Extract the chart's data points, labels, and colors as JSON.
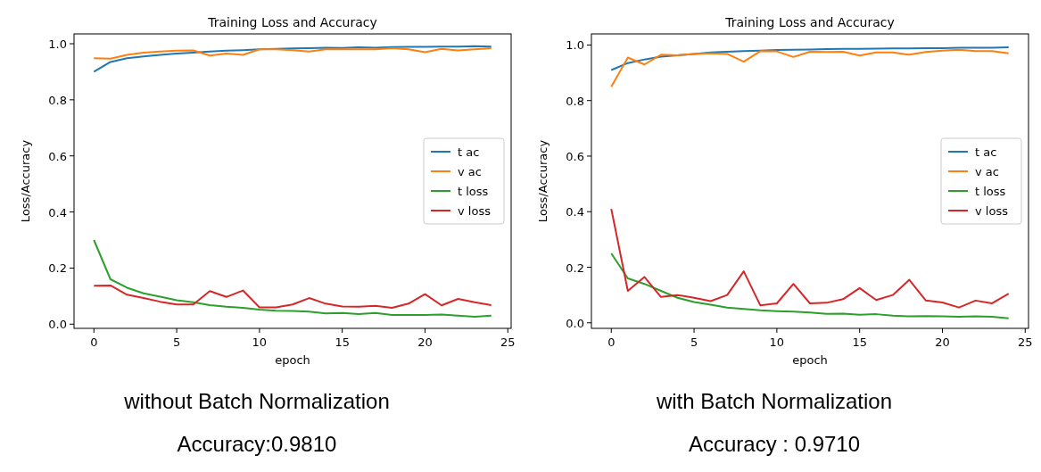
{
  "chart_data": [
    {
      "type": "line",
      "title": "Training Loss and Accuracy",
      "xlabel": "epoch",
      "ylabel": "Loss/Accuracy",
      "x": [
        0,
        1,
        2,
        3,
        4,
        5,
        6,
        7,
        8,
        9,
        10,
        11,
        12,
        13,
        14,
        15,
        16,
        17,
        18,
        19,
        20,
        21,
        22,
        23,
        24
      ],
      "xlim": [
        -1.2,
        25.2
      ],
      "xticks": [
        0,
        5,
        10,
        15,
        20,
        25
      ],
      "ylim": [
        -0.015,
        1.035
      ],
      "yticks": [
        {
          "value": 0,
          "label": "0.0"
        },
        {
          "value": 0.2,
          "label": "0.2"
        },
        {
          "value": 0.4,
          "label": "0.4"
        },
        {
          "value": 0.6,
          "label": "0.6"
        },
        {
          "value": 0.8,
          "label": "0.8"
        },
        {
          "value": 1,
          "label": "1.0"
        }
      ],
      "legend": "center right",
      "grid": false,
      "annotations": [
        "without Batch Normalization",
        "Accuracy:0.9810"
      ],
      "series": [
        {
          "name": "t ac",
          "color": "#1f77b4",
          "values": [
            0.9,
            0.935,
            0.948,
            0.955,
            0.96,
            0.965,
            0.968,
            0.972,
            0.975,
            0.977,
            0.98,
            0.982,
            0.983,
            0.984,
            0.986,
            0.985,
            0.987,
            0.986,
            0.988,
            0.989,
            0.989,
            0.99,
            0.99,
            0.991,
            0.99
          ]
        },
        {
          "name": "v ac",
          "color": "#ff7f0e",
          "values": [
            0.948,
            0.947,
            0.96,
            0.968,
            0.972,
            0.975,
            0.976,
            0.958,
            0.965,
            0.96,
            0.98,
            0.98,
            0.977,
            0.972,
            0.98,
            0.98,
            0.98,
            0.98,
            0.984,
            0.98,
            0.97,
            0.982,
            0.976,
            0.98,
            0.984
          ]
        },
        {
          "name": "t loss",
          "color": "#2ca02c",
          "values": [
            0.3,
            0.16,
            0.13,
            0.11,
            0.098,
            0.085,
            0.078,
            0.068,
            0.062,
            0.058,
            0.052,
            0.048,
            0.047,
            0.045,
            0.038,
            0.04,
            0.036,
            0.04,
            0.033,
            0.033,
            0.033,
            0.034,
            0.03,
            0.026,
            0.03
          ]
        },
        {
          "name": "v loss",
          "color": "#d62728",
          "values": [
            0.137,
            0.138,
            0.105,
            0.093,
            0.08,
            0.07,
            0.07,
            0.118,
            0.097,
            0.12,
            0.06,
            0.06,
            0.07,
            0.093,
            0.073,
            0.063,
            0.062,
            0.065,
            0.058,
            0.073,
            0.107,
            0.067,
            0.09,
            0.078,
            0.068
          ]
        }
      ]
    },
    {
      "type": "line",
      "title": "Training Loss and Accuracy",
      "xlabel": "epoch",
      "ylabel": "Loss/Accuracy",
      "x": [
        0,
        1,
        2,
        3,
        4,
        5,
        6,
        7,
        8,
        9,
        10,
        11,
        12,
        13,
        14,
        15,
        16,
        17,
        18,
        19,
        20,
        21,
        22,
        23,
        24
      ],
      "xlim": [
        -1.2,
        25.2
      ],
      "xticks": [
        0,
        5,
        10,
        15,
        20,
        25
      ],
      "ylim": [
        -0.02,
        1.04
      ],
      "yticks": [
        {
          "value": 0,
          "label": "0.0"
        },
        {
          "value": 0.2,
          "label": "0.2"
        },
        {
          "value": 0.4,
          "label": "0.4"
        },
        {
          "value": 0.6,
          "label": "0.6"
        },
        {
          "value": 0.8,
          "label": "0.8"
        },
        {
          "value": 1,
          "label": "1.0"
        }
      ],
      "legend": "center right",
      "grid": false,
      "annotations": [
        "with Batch Normalization",
        "Accuracy : 0.9710"
      ],
      "series": [
        {
          "name": "t ac",
          "color": "#1f77b4",
          "values": [
            0.91,
            0.935,
            0.948,
            0.958,
            0.963,
            0.968,
            0.973,
            0.976,
            0.978,
            0.98,
            0.982,
            0.983,
            0.984,
            0.985,
            0.986,
            0.986,
            0.987,
            0.988,
            0.988,
            0.989,
            0.989,
            0.99,
            0.99,
            0.99,
            0.992
          ]
        },
        {
          "name": "v ac",
          "color": "#ff7f0e",
          "values": [
            0.85,
            0.955,
            0.93,
            0.965,
            0.963,
            0.968,
            0.97,
            0.968,
            0.94,
            0.978,
            0.977,
            0.957,
            0.976,
            0.975,
            0.976,
            0.962,
            0.973,
            0.973,
            0.965,
            0.975,
            0.98,
            0.983,
            0.978,
            0.978,
            0.97
          ]
        },
        {
          "name": "t loss",
          "color": "#2ca02c",
          "values": [
            0.25,
            0.16,
            0.14,
            0.115,
            0.09,
            0.075,
            0.065,
            0.055,
            0.05,
            0.045,
            0.042,
            0.04,
            0.037,
            0.032,
            0.033,
            0.029,
            0.031,
            0.026,
            0.023,
            0.024,
            0.023,
            0.022,
            0.023,
            0.022,
            0.016
          ]
        },
        {
          "name": "v loss",
          "color": "#d62728",
          "values": [
            0.41,
            0.115,
            0.165,
            0.093,
            0.1,
            0.09,
            0.078,
            0.1,
            0.185,
            0.063,
            0.07,
            0.14,
            0.07,
            0.072,
            0.085,
            0.125,
            0.082,
            0.1,
            0.155,
            0.08,
            0.073,
            0.055,
            0.08,
            0.07,
            0.105
          ]
        }
      ]
    }
  ]
}
